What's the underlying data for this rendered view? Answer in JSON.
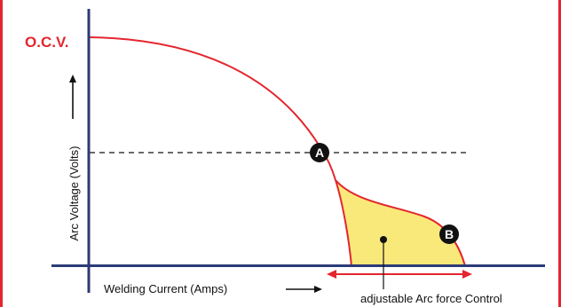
{
  "diagram": {
    "ocv_label": "O.C.V.",
    "y_axis_label": "Arc Voltage (Volts)",
    "x_axis_label": "Welding Current (Amps)",
    "point_a_label": "A",
    "point_b_label": "B",
    "range_label": "adjustable Arc force Control",
    "colors": {
      "frame": "#e3262e",
      "axis": "#2b3a77",
      "curve": "#e3262e",
      "area_fill": "#f9e97a",
      "marker": "#111111",
      "ocv_text": "#e3262e"
    }
  }
}
